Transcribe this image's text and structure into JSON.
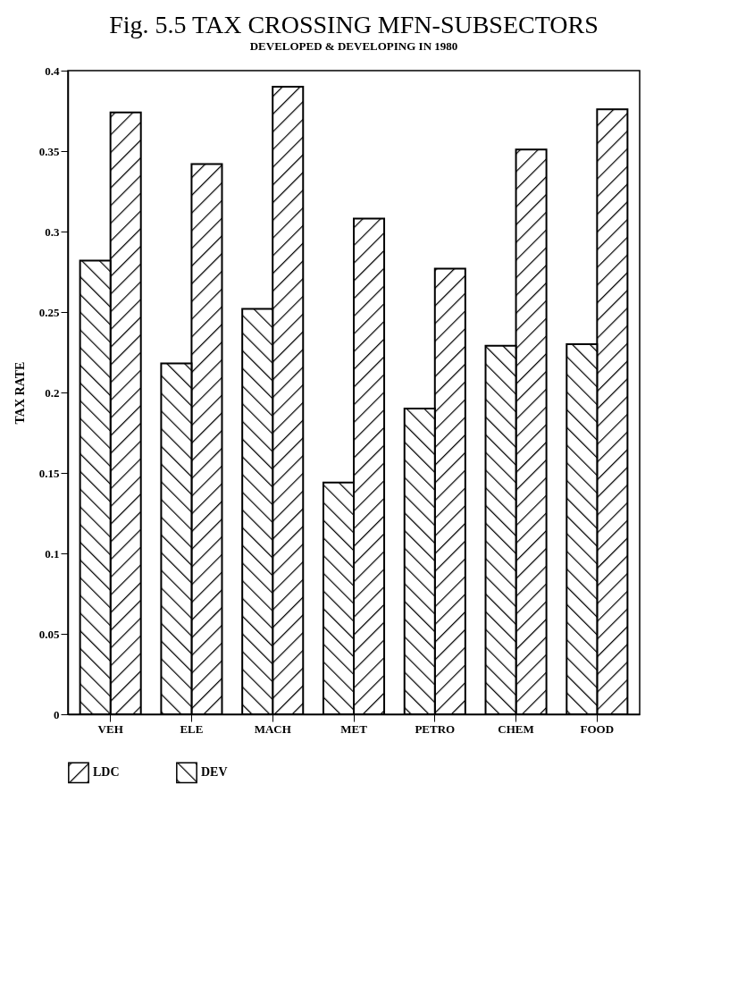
{
  "chart_data": {
    "type": "bar",
    "title": "Fig. 5.5 TAX CROSSING MFN-SUBSECTORS",
    "subtitle": "DEVELOPED & DEVELOPING IN 1980",
    "ylabel": "TAX RATE",
    "categories": [
      "VEH",
      "ELE",
      "MACH",
      "MET",
      "PETRO",
      "CHEM",
      "FOOD"
    ],
    "series": [
      {
        "name": "LDC",
        "color": "#000000",
        "values": [
          0.374,
          0.342,
          0.39,
          0.308,
          0.277,
          0.351,
          0.376
        ]
      },
      {
        "name": "DEV",
        "color": "#000000",
        "values": [
          0.282,
          0.218,
          0.252,
          0.144,
          0.19,
          0.229,
          0.23
        ]
      }
    ],
    "ylim": [
      0,
      0.4
    ],
    "yticks": [
      0,
      0.05,
      0.1,
      0.15,
      0.2,
      0.25,
      0.3,
      0.35,
      0.4
    ],
    "grid": false,
    "legend": "bottom"
  }
}
